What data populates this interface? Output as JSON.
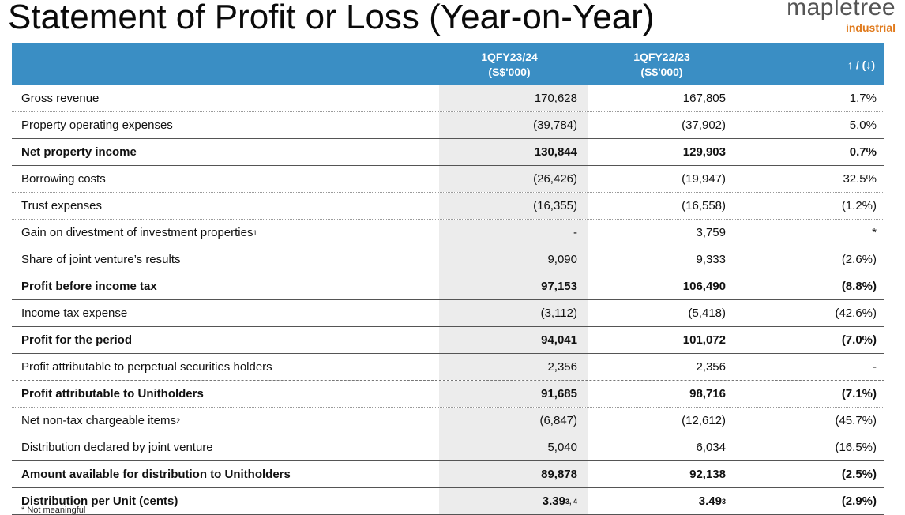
{
  "title": "Statement of Profit or Loss (Year-on-Year)",
  "logo": {
    "word": "mapletree",
    "sub": "industrial"
  },
  "header": {
    "col1_line1": "1QFY23/24",
    "col1_line2": "(S$'000)",
    "col2_line1": "1QFY22/23",
    "col2_line2": "(S$'000)",
    "col3": "↑ / (↓)"
  },
  "rows": [
    {
      "label": "Gross revenue",
      "sup": "",
      "v1": "170,628",
      "v1sup": "",
      "v2": "167,805",
      "v2sup": "",
      "v3": "1.7%"
    },
    {
      "label": "Property operating expenses",
      "sup": "",
      "v1": "(39,784)",
      "v1sup": "",
      "v2": "(37,902)",
      "v2sup": "",
      "v3": "5.0%"
    },
    {
      "label": "Net property income",
      "sup": "",
      "v1": "130,844",
      "v1sup": "",
      "v2": "129,903",
      "v2sup": "",
      "v3": "0.7%"
    },
    {
      "label": "Borrowing costs",
      "sup": "",
      "v1": "(26,426)",
      "v1sup": "",
      "v2": "(19,947)",
      "v2sup": "",
      "v3": "32.5%"
    },
    {
      "label": "Trust expenses",
      "sup": "",
      "v1": "(16,355)",
      "v1sup": "",
      "v2": "(16,558)",
      "v2sup": "",
      "v3": "(1.2%)"
    },
    {
      "label": "Gain on divestment of investment properties",
      "sup": "1",
      "v1": "-",
      "v1sup": "",
      "v2": "3,759",
      "v2sup": "",
      "v3": "*"
    },
    {
      "label": "Share of joint venture’s results",
      "sup": "",
      "v1": "9,090",
      "v1sup": "",
      "v2": "9,333",
      "v2sup": "",
      "v3": "(2.6%)"
    },
    {
      "label": "Profit before income tax",
      "sup": "",
      "v1": "97,153",
      "v1sup": "",
      "v2": "106,490",
      "v2sup": "",
      "v3": "(8.8%)"
    },
    {
      "label": "Income tax expense",
      "sup": "",
      "v1": "(3,112)",
      "v1sup": "",
      "v2": "(5,418)",
      "v2sup": "",
      "v3": "(42.6%)"
    },
    {
      "label": "Profit for the period",
      "sup": "",
      "v1": "94,041",
      "v1sup": "",
      "v2": "101,072",
      "v2sup": "",
      "v3": "(7.0%)"
    },
    {
      "label": "Profit attributable to perpetual securities holders",
      "sup": "",
      "v1": "2,356",
      "v1sup": "",
      "v2": "2,356",
      "v2sup": "",
      "v3": "-"
    },
    {
      "label": "Profit attributable to Unitholders",
      "sup": "",
      "v1": "91,685",
      "v1sup": "",
      "v2": "98,716",
      "v2sup": "",
      "v3": "(7.1%)"
    },
    {
      "label": "Net non-tax chargeable items",
      "sup": "2",
      "v1": "(6,847)",
      "v1sup": "",
      "v2": "(12,612)",
      "v2sup": "",
      "v3": "(45.7%)"
    },
    {
      "label": "Distribution declared by joint venture",
      "sup": "",
      "v1": "5,040",
      "v1sup": "",
      "v2": "6,034",
      "v2sup": "",
      "v3": "(16.5%)"
    },
    {
      "label": "Amount available for distribution to Unitholders",
      "sup": "",
      "v1": "89,878",
      "v1sup": "",
      "v2": "92,138",
      "v2sup": "",
      "v3": "(2.5%)"
    },
    {
      "label": "Distribution per Unit (cents)",
      "sup": "",
      "v1": "3.39",
      "v1sup": "3, 4",
      "v2": "3.49",
      "v2sup": "3",
      "v3": "(2.9%)"
    }
  ],
  "footnote": "* Not meaningful"
}
